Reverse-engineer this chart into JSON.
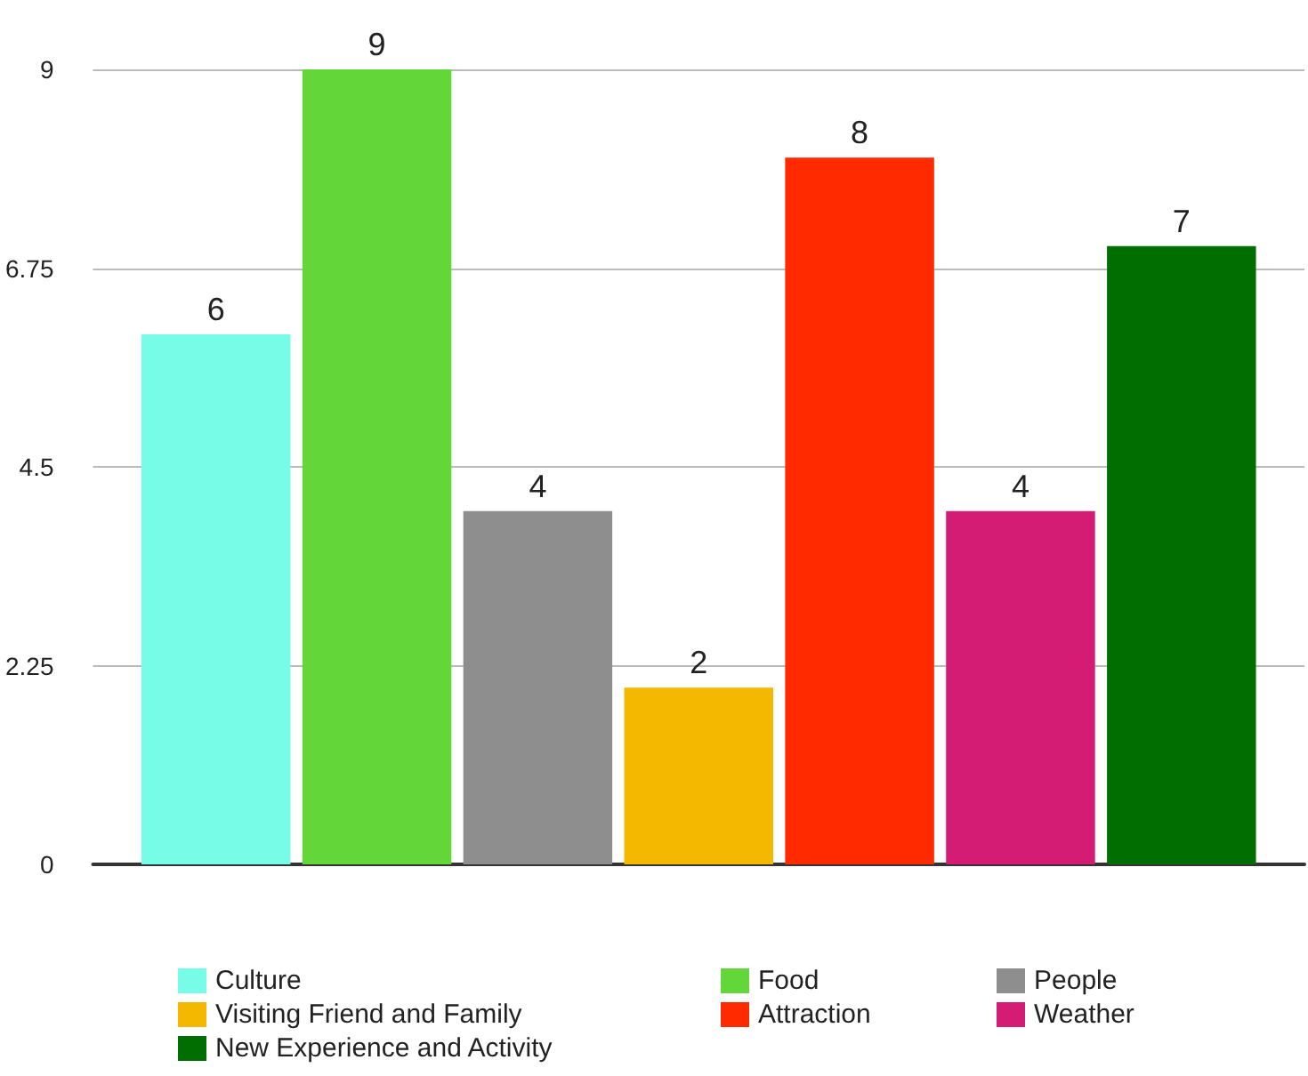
{
  "chart_data": {
    "type": "bar",
    "categories": [
      null
    ],
    "series": [
      {
        "name": "Culture",
        "color": "#77fce8",
        "values": [
          6
        ]
      },
      {
        "name": "Food",
        "color": "#63d63a",
        "values": [
          9
        ]
      },
      {
        "name": "People",
        "color": "#8e8e8e",
        "values": [
          4
        ]
      },
      {
        "name": "Visiting Friend and Family",
        "color": "#f5b800",
        "values": [
          2
        ]
      },
      {
        "name": "Attraction",
        "color": "#ff2a00",
        "values": [
          8
        ]
      },
      {
        "name": "Weather",
        "color": "#d41c75",
        "values": [
          4
        ]
      },
      {
        "name": "New Experience and Activity",
        "color": "#006e00",
        "values": [
          7
        ]
      }
    ],
    "ylim": [
      0,
      9
    ],
    "yticks": [
      0,
      2.25,
      4.5,
      6.75,
      9
    ],
    "grid": "y",
    "legend": "bottom",
    "data_labels": true
  }
}
